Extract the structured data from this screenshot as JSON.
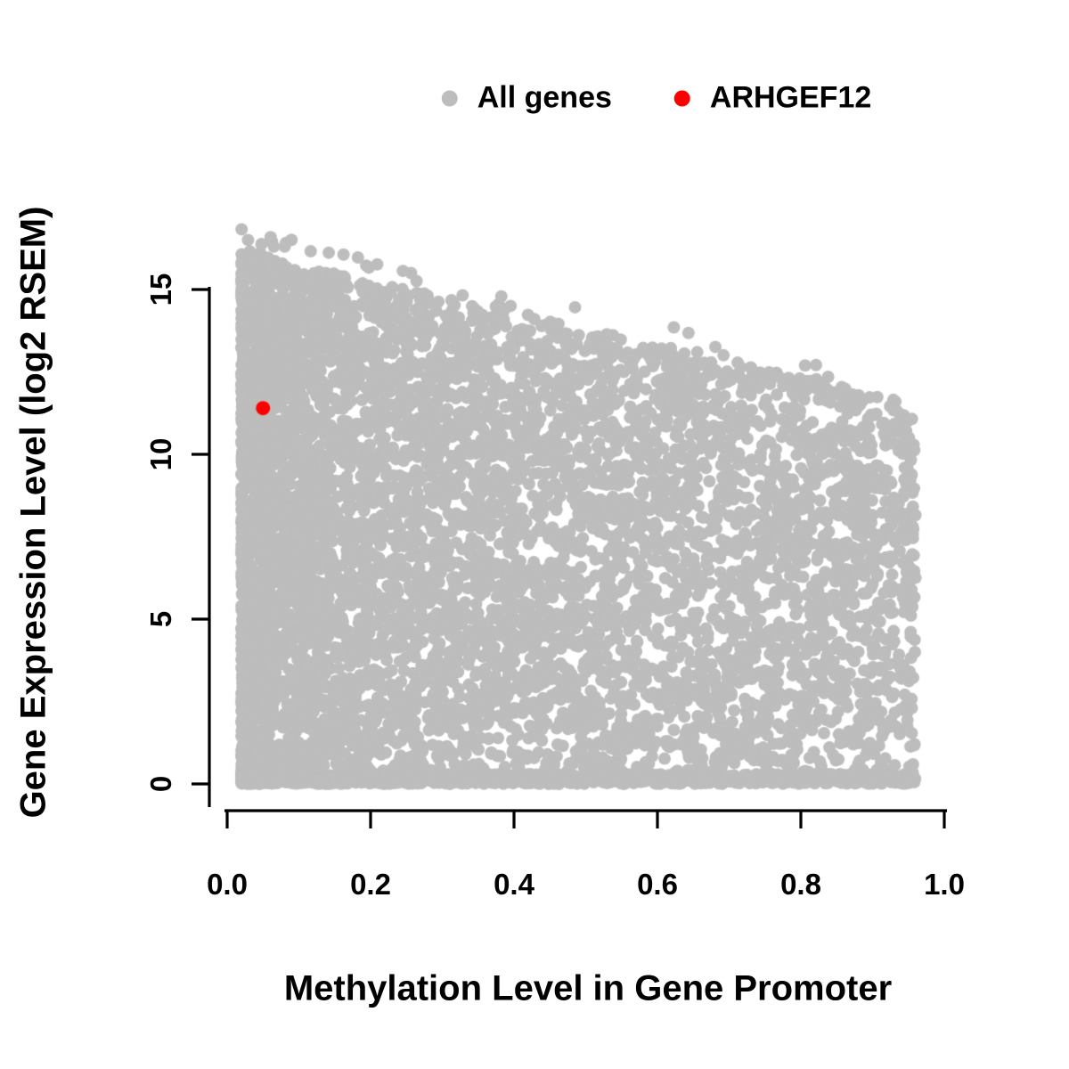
{
  "chart_data": {
    "type": "scatter",
    "title": "",
    "xlabel": "Methylation Level in Gene Promoter",
    "ylabel": "Gene Expression Level (log2 RSEM)",
    "xlim": [
      0,
      1
    ],
    "ylim": [
      0,
      17
    ],
    "grid": false,
    "legend_position": "top-center",
    "x_ticks": {
      "values": [
        0,
        0.2,
        0.4,
        0.6,
        0.8,
        1.0
      ],
      "labels": [
        "0.0",
        "0.2",
        "0.4",
        "0.6",
        "0.8",
        "1.0"
      ]
    },
    "y_ticks": {
      "values": [
        0,
        5,
        10,
        15
      ],
      "labels": [
        "0",
        "5",
        "10",
        "15"
      ]
    },
    "series": [
      {
        "name": "All genes",
        "color": "#bdbdbd",
        "marker_radius_px": 7,
        "cloud": {
          "n": 8000,
          "seed": 12345,
          "x_min": 0.02,
          "x_max": 0.96,
          "x_skew": 1.7,
          "envelope_y_at_x0": 16.2,
          "envelope_y_at_x1": 11.4,
          "vertical_bias": 0.93,
          "bottom_cluster_fraction": 0.12,
          "outlier_fraction": 0.004
        }
      },
      {
        "name": "ARHGEF12",
        "color": "#ff0000",
        "marker_radius_px": 8,
        "points": [
          {
            "x": 0.05,
            "y": 11.4
          }
        ]
      }
    ]
  }
}
